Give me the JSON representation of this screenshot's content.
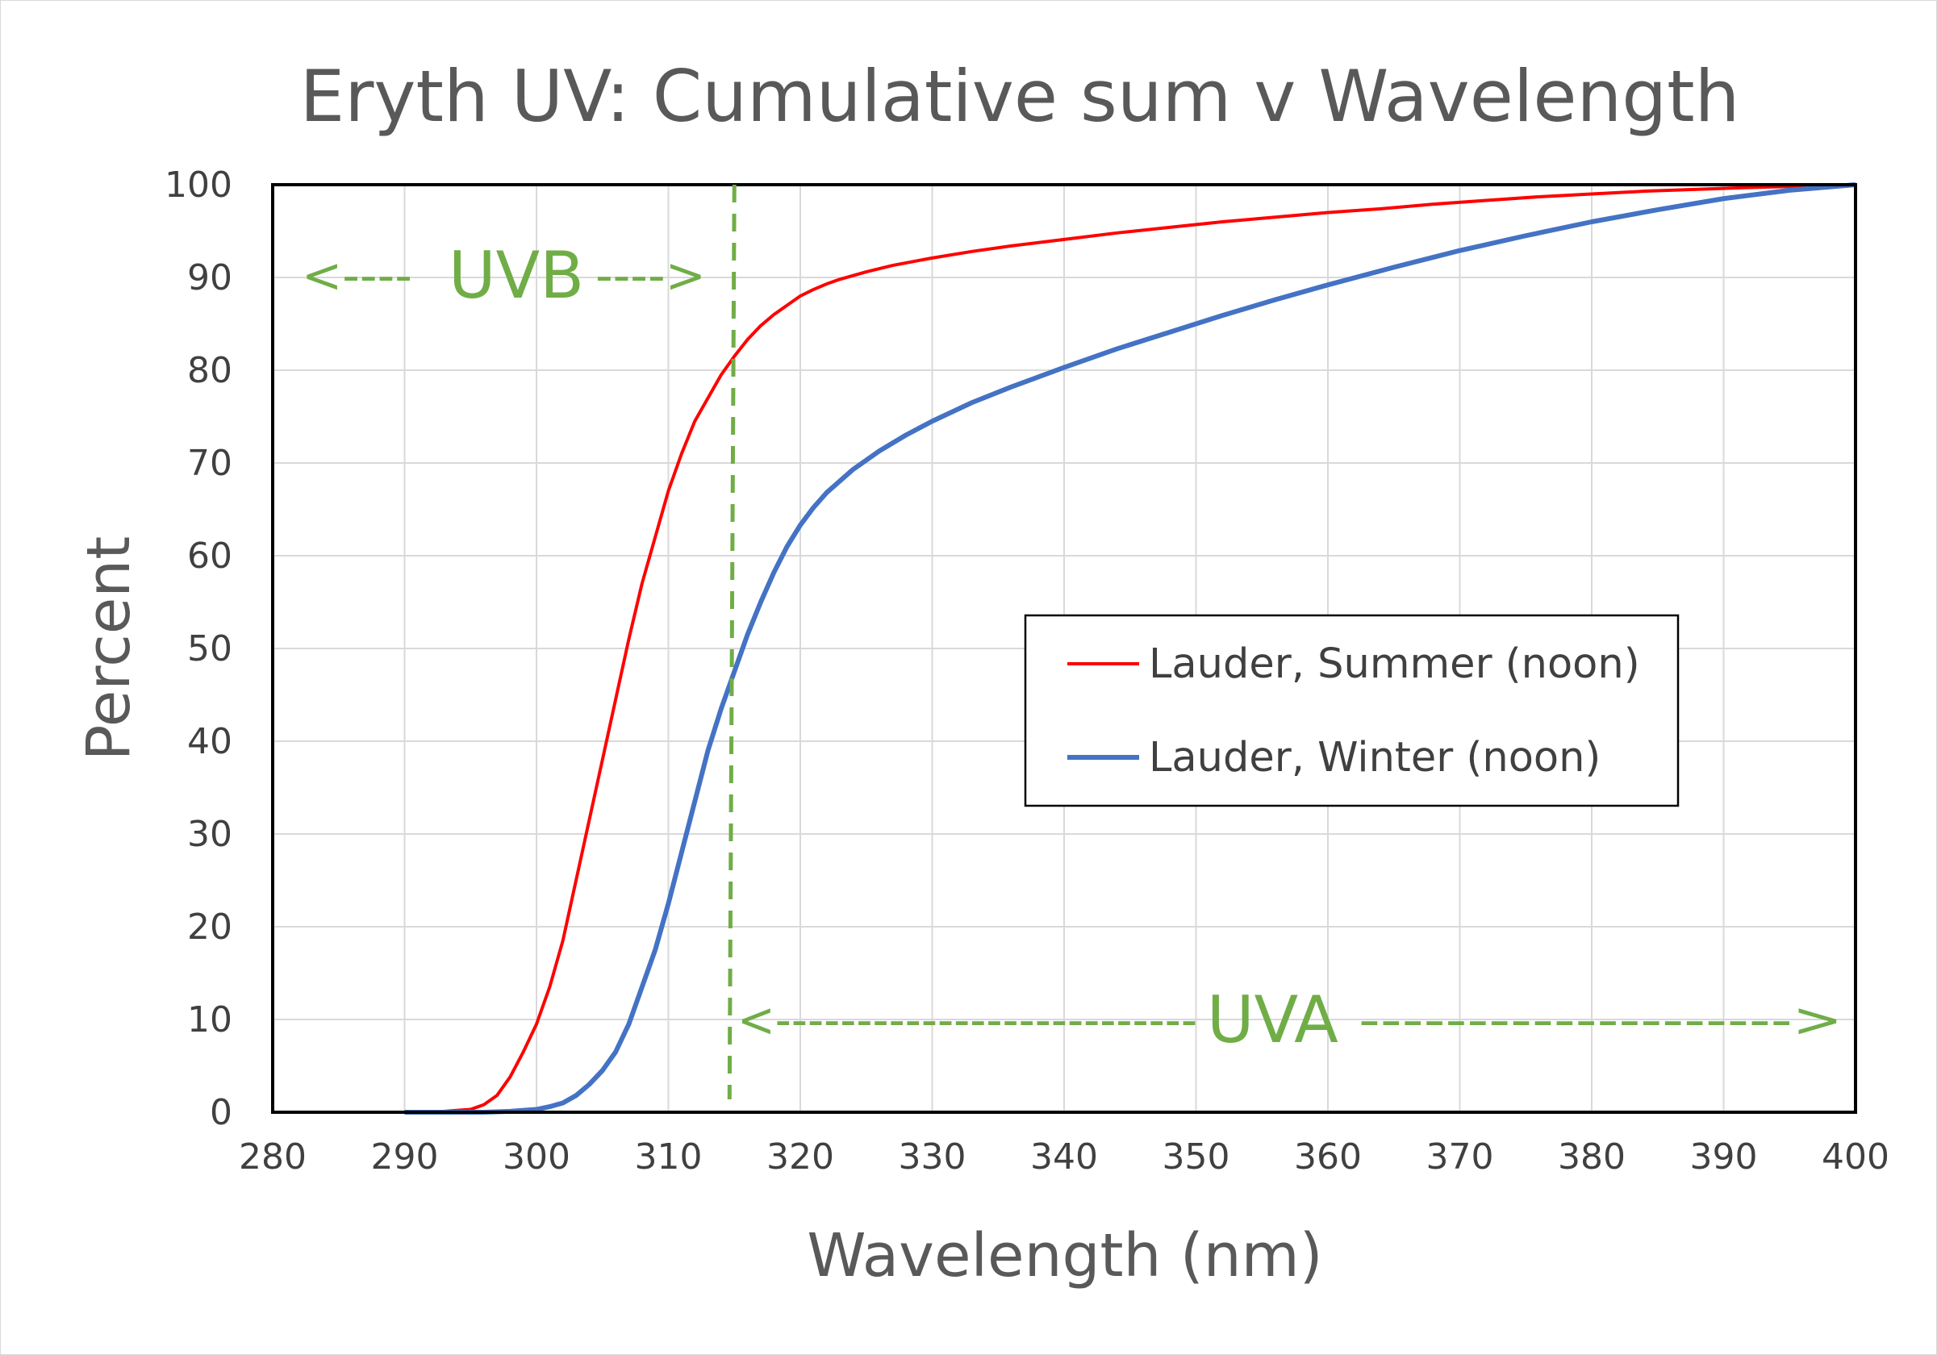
{
  "chart_data": {
    "type": "line",
    "title": "Eryth UV: Cumulative sum v  Wavelength",
    "xlabel": "Wavelength (nm)",
    "ylabel": "Percent",
    "xlim": [
      280,
      400
    ],
    "ylim": [
      0,
      100
    ],
    "x_ticks": [
      280,
      290,
      300,
      310,
      320,
      330,
      340,
      350,
      360,
      370,
      380,
      390,
      400
    ],
    "y_ticks": [
      0,
      10,
      20,
      30,
      40,
      50,
      60,
      70,
      80,
      90,
      100
    ],
    "grid": true,
    "legend_position": "center-right",
    "series": [
      {
        "name": "Lauder, Summer (noon)",
        "color": "#ff0000",
        "x": [
          290,
          293,
          295,
          296,
          297,
          298,
          299,
          300,
          301,
          302,
          303,
          304,
          305,
          306,
          307,
          308,
          309,
          310,
          311,
          312,
          313,
          314,
          315,
          316,
          317,
          318,
          319,
          320,
          321,
          322,
          323,
          325,
          327,
          330,
          333,
          336,
          340,
          344,
          348,
          352,
          356,
          360,
          364,
          368,
          372,
          376,
          380,
          384,
          388,
          392,
          396,
          400
        ],
        "y": [
          0,
          0.1,
          0.3,
          0.8,
          1.8,
          3.8,
          6.5,
          9.5,
          13.5,
          18.5,
          25,
          31.5,
          38,
          44.5,
          51,
          57,
          62,
          67,
          71,
          74.5,
          77,
          79.5,
          81.5,
          83.3,
          84.8,
          86,
          87,
          88,
          88.7,
          89.3,
          89.8,
          90.6,
          91.3,
          92.1,
          92.8,
          93.4,
          94.1,
          94.8,
          95.4,
          96,
          96.5,
          97,
          97.4,
          97.9,
          98.3,
          98.7,
          99,
          99.3,
          99.5,
          99.7,
          99.85,
          100
        ]
      },
      {
        "name": "Lauder, Winter (noon)",
        "color": "#4472c4",
        "x": [
          290,
          293,
          296,
          298,
          300,
          301,
          302,
          303,
          304,
          305,
          306,
          307,
          308,
          309,
          310,
          311,
          312,
          313,
          314,
          315,
          316,
          317,
          318,
          319,
          320,
          321,
          322,
          324,
          326,
          328,
          330,
          333,
          336,
          340,
          344,
          348,
          352,
          356,
          360,
          365,
          370,
          375,
          380,
          385,
          390,
          395,
          400
        ],
        "y": [
          0,
          0,
          0,
          0.1,
          0.3,
          0.6,
          1,
          1.8,
          3,
          4.5,
          6.5,
          9.5,
          13.5,
          17.5,
          22.5,
          28,
          33.5,
          39,
          43.5,
          47.5,
          51.5,
          55,
          58.2,
          61,
          63.3,
          65.2,
          66.8,
          69.3,
          71.3,
          73,
          74.5,
          76.5,
          78.2,
          80.3,
          82.3,
          84.1,
          85.9,
          87.6,
          89.2,
          91.1,
          92.9,
          94.5,
          96,
          97.3,
          98.5,
          99.4,
          100
        ]
      }
    ],
    "annotations": [
      {
        "text": "UVB",
        "left_arrow": "<----",
        "right_arrow": "---->"
      },
      {
        "text": "UVA",
        "left_arrow": "<--------------------------",
        "right_arrow": "-------------------->"
      }
    ],
    "divider_x": 315
  }
}
